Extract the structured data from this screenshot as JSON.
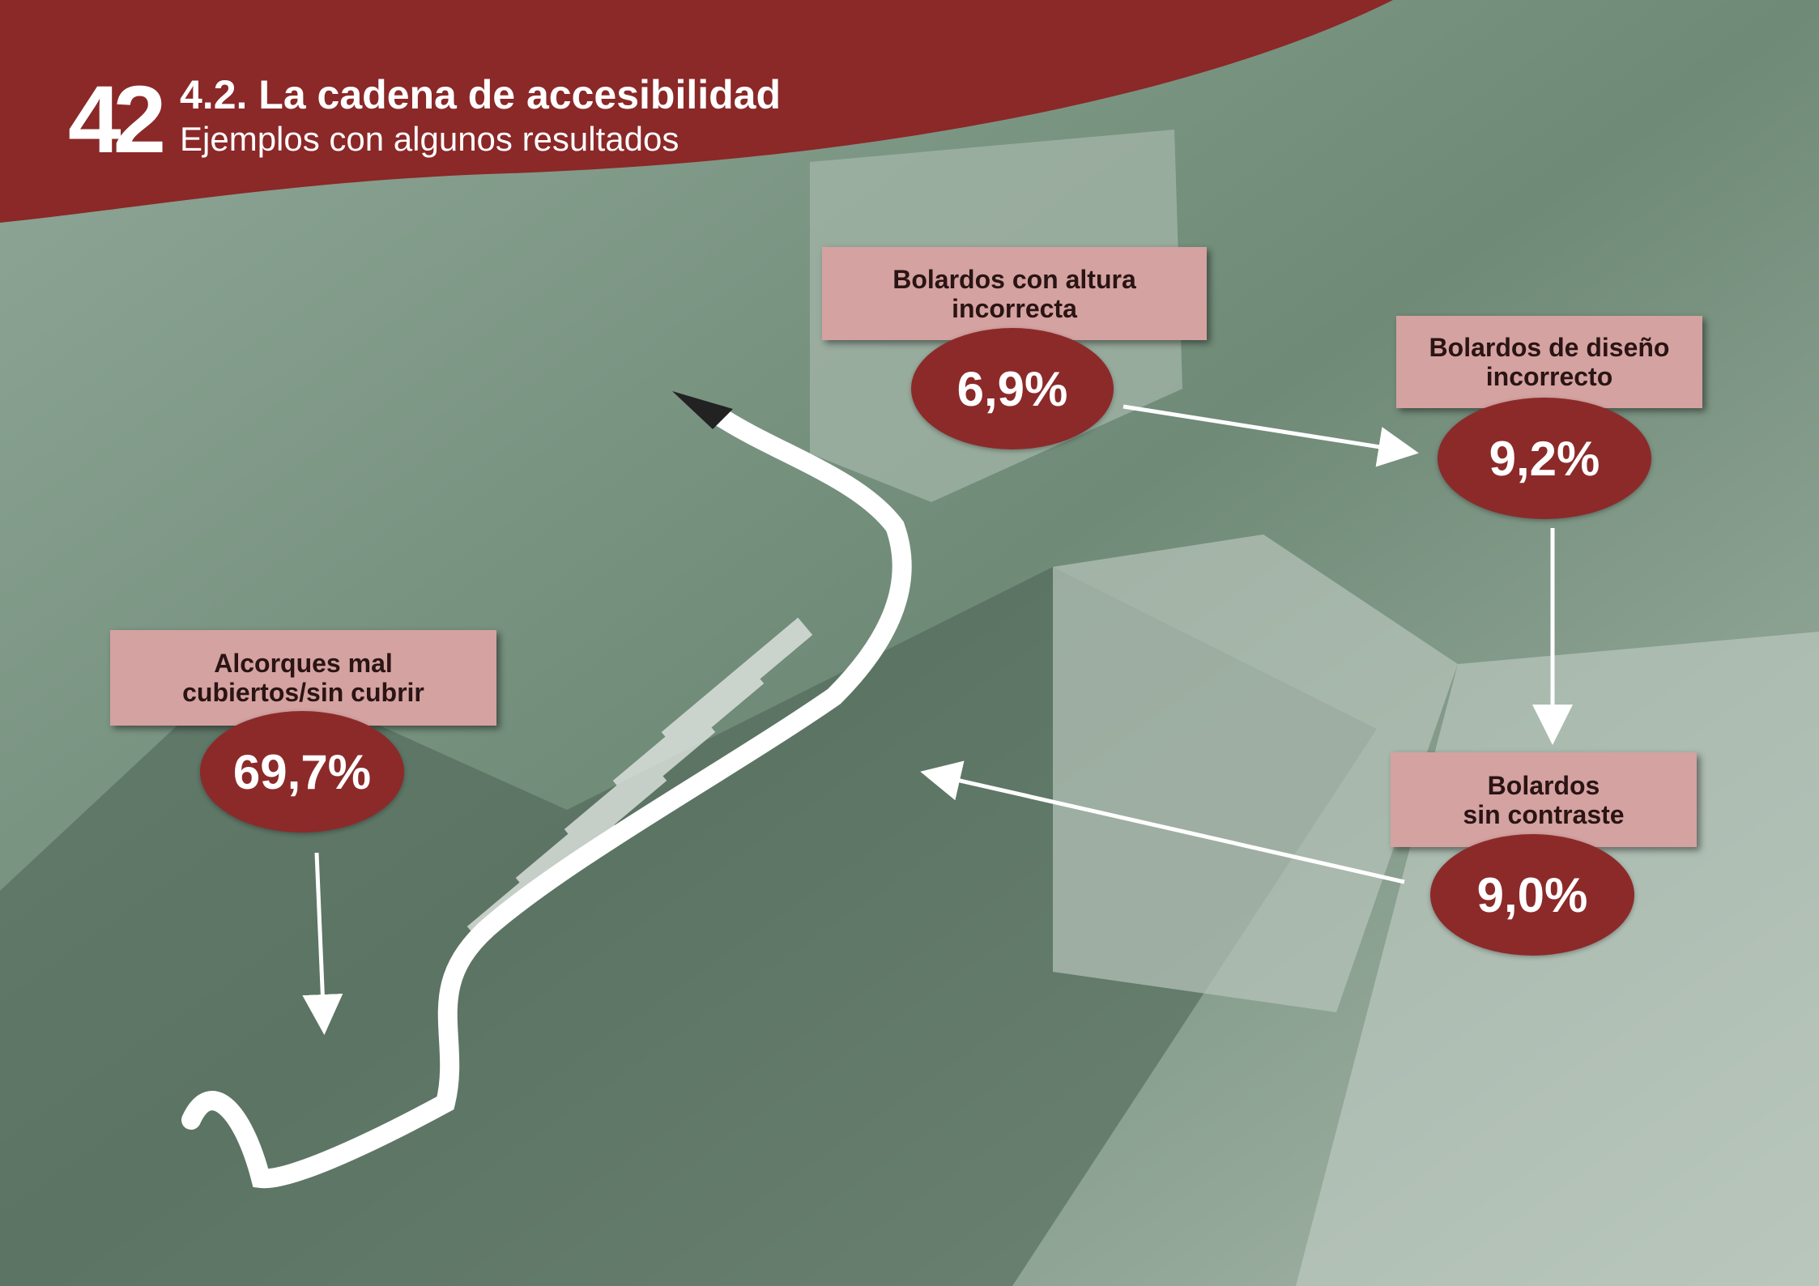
{
  "header": {
    "page_number": "42",
    "title": "4.2. La cadena de accesibilidad",
    "subtitle": "Ejemplos con algunos resultados"
  },
  "callouts": [
    {
      "label_lines": [
        "Bolardos con altura",
        "incorrecta"
      ],
      "value": "6,9%"
    },
    {
      "label_lines": [
        "Bolardos de diseño",
        "incorrecto"
      ],
      "value": "9,2%"
    },
    {
      "label_lines": [
        "Bolardos",
        "sin contraste"
      ],
      "value": "9,0%"
    },
    {
      "label_lines": [
        "Alcorques mal",
        "cubiertos/sin cubrir"
      ],
      "value": "69,7%"
    }
  ]
}
